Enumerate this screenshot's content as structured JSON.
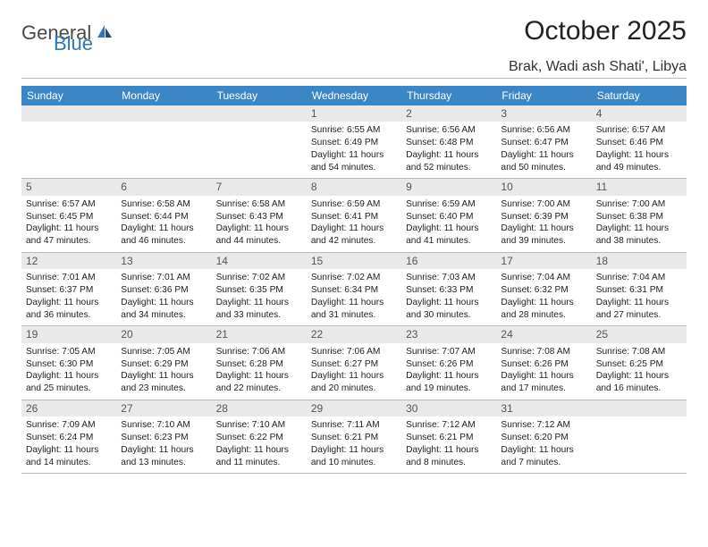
{
  "brand": {
    "part1": "General",
    "part2": "Blue"
  },
  "title": "October 2025",
  "location": "Brak, Wadi ash Shati', Libya",
  "colors": {
    "header_bg": "#3a87c7",
    "header_text": "#ffffff",
    "daynum_bg": "#e9e9e9",
    "daynum_text": "#555555",
    "body_text": "#222222",
    "divider": "#b8b8b8",
    "logo_gray": "#4a4a4a",
    "logo_blue": "#2d77bb",
    "page_bg": "#ffffff"
  },
  "fonts": {
    "month_title_pt": 30,
    "location_pt": 16,
    "dow_pt": 12,
    "daynum_pt": 12,
    "body_pt": 10.2
  },
  "dow": [
    "Sunday",
    "Monday",
    "Tuesday",
    "Wednesday",
    "Thursday",
    "Friday",
    "Saturday"
  ],
  "weeks": [
    [
      null,
      null,
      null,
      {
        "n": "1",
        "sr": "6:55 AM",
        "ss": "6:49 PM",
        "dl": "11 hours and 54 minutes."
      },
      {
        "n": "2",
        "sr": "6:56 AM",
        "ss": "6:48 PM",
        "dl": "11 hours and 52 minutes."
      },
      {
        "n": "3",
        "sr": "6:56 AM",
        "ss": "6:47 PM",
        "dl": "11 hours and 50 minutes."
      },
      {
        "n": "4",
        "sr": "6:57 AM",
        "ss": "6:46 PM",
        "dl": "11 hours and 49 minutes."
      }
    ],
    [
      {
        "n": "5",
        "sr": "6:57 AM",
        "ss": "6:45 PM",
        "dl": "11 hours and 47 minutes."
      },
      {
        "n": "6",
        "sr": "6:58 AM",
        "ss": "6:44 PM",
        "dl": "11 hours and 46 minutes."
      },
      {
        "n": "7",
        "sr": "6:58 AM",
        "ss": "6:43 PM",
        "dl": "11 hours and 44 minutes."
      },
      {
        "n": "8",
        "sr": "6:59 AM",
        "ss": "6:41 PM",
        "dl": "11 hours and 42 minutes."
      },
      {
        "n": "9",
        "sr": "6:59 AM",
        "ss": "6:40 PM",
        "dl": "11 hours and 41 minutes."
      },
      {
        "n": "10",
        "sr": "7:00 AM",
        "ss": "6:39 PM",
        "dl": "11 hours and 39 minutes."
      },
      {
        "n": "11",
        "sr": "7:00 AM",
        "ss": "6:38 PM",
        "dl": "11 hours and 38 minutes."
      }
    ],
    [
      {
        "n": "12",
        "sr": "7:01 AM",
        "ss": "6:37 PM",
        "dl": "11 hours and 36 minutes."
      },
      {
        "n": "13",
        "sr": "7:01 AM",
        "ss": "6:36 PM",
        "dl": "11 hours and 34 minutes."
      },
      {
        "n": "14",
        "sr": "7:02 AM",
        "ss": "6:35 PM",
        "dl": "11 hours and 33 minutes."
      },
      {
        "n": "15",
        "sr": "7:02 AM",
        "ss": "6:34 PM",
        "dl": "11 hours and 31 minutes."
      },
      {
        "n": "16",
        "sr": "7:03 AM",
        "ss": "6:33 PM",
        "dl": "11 hours and 30 minutes."
      },
      {
        "n": "17",
        "sr": "7:04 AM",
        "ss": "6:32 PM",
        "dl": "11 hours and 28 minutes."
      },
      {
        "n": "18",
        "sr": "7:04 AM",
        "ss": "6:31 PM",
        "dl": "11 hours and 27 minutes."
      }
    ],
    [
      {
        "n": "19",
        "sr": "7:05 AM",
        "ss": "6:30 PM",
        "dl": "11 hours and 25 minutes."
      },
      {
        "n": "20",
        "sr": "7:05 AM",
        "ss": "6:29 PM",
        "dl": "11 hours and 23 minutes."
      },
      {
        "n": "21",
        "sr": "7:06 AM",
        "ss": "6:28 PM",
        "dl": "11 hours and 22 minutes."
      },
      {
        "n": "22",
        "sr": "7:06 AM",
        "ss": "6:27 PM",
        "dl": "11 hours and 20 minutes."
      },
      {
        "n": "23",
        "sr": "7:07 AM",
        "ss": "6:26 PM",
        "dl": "11 hours and 19 minutes."
      },
      {
        "n": "24",
        "sr": "7:08 AM",
        "ss": "6:26 PM",
        "dl": "11 hours and 17 minutes."
      },
      {
        "n": "25",
        "sr": "7:08 AM",
        "ss": "6:25 PM",
        "dl": "11 hours and 16 minutes."
      }
    ],
    [
      {
        "n": "26",
        "sr": "7:09 AM",
        "ss": "6:24 PM",
        "dl": "11 hours and 14 minutes."
      },
      {
        "n": "27",
        "sr": "7:10 AM",
        "ss": "6:23 PM",
        "dl": "11 hours and 13 minutes."
      },
      {
        "n": "28",
        "sr": "7:10 AM",
        "ss": "6:22 PM",
        "dl": "11 hours and 11 minutes."
      },
      {
        "n": "29",
        "sr": "7:11 AM",
        "ss": "6:21 PM",
        "dl": "11 hours and 10 minutes."
      },
      {
        "n": "30",
        "sr": "7:12 AM",
        "ss": "6:21 PM",
        "dl": "11 hours and 8 minutes."
      },
      {
        "n": "31",
        "sr": "7:12 AM",
        "ss": "6:20 PM",
        "dl": "11 hours and 7 minutes."
      },
      null
    ]
  ],
  "labels": {
    "sunrise": "Sunrise:",
    "sunset": "Sunset:",
    "daylight": "Daylight:"
  }
}
